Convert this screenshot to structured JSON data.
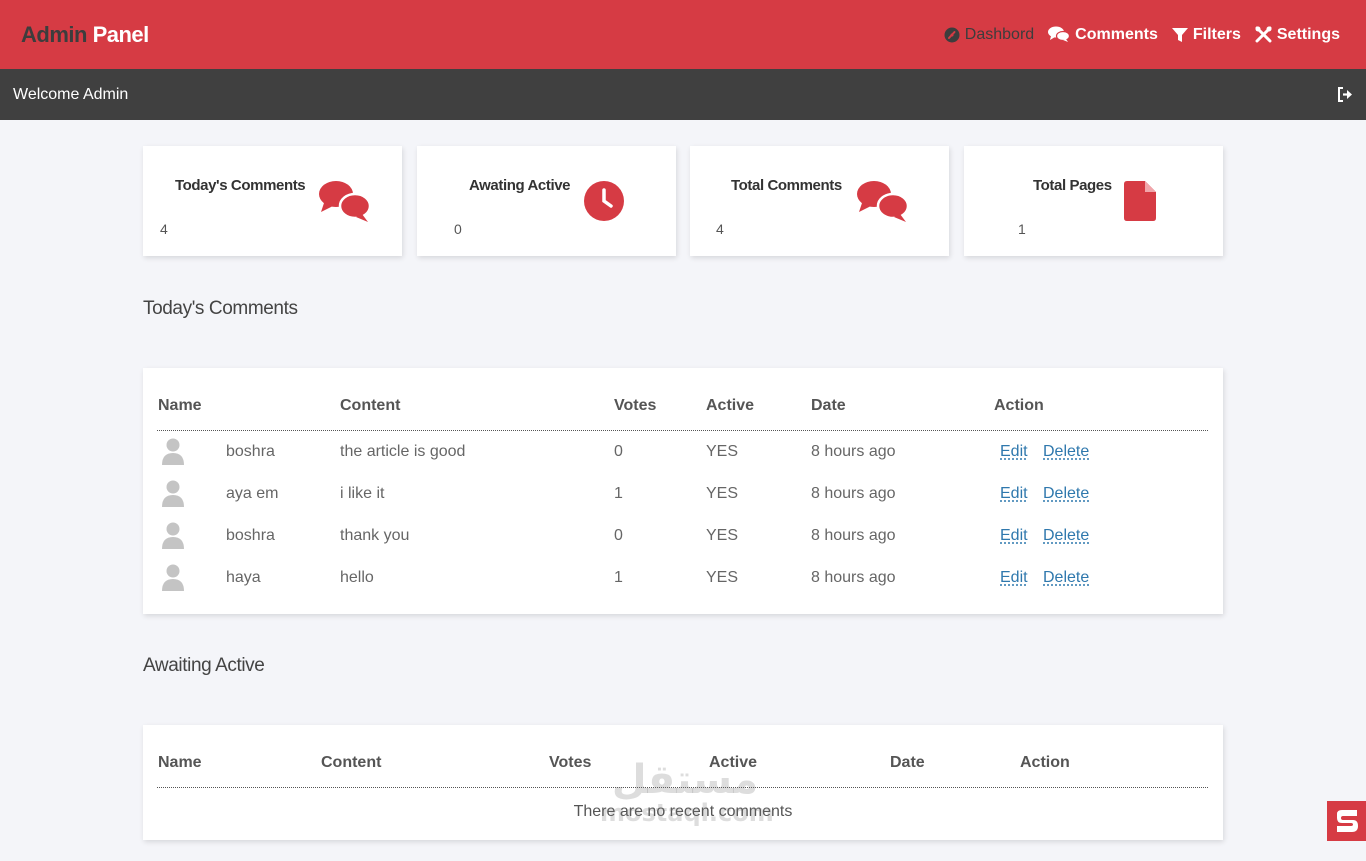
{
  "brand": {
    "part1": "Admin",
    "part2": "Panel"
  },
  "nav": [
    {
      "label": "Dashbord",
      "icon": "dashboard-icon",
      "active": true
    },
    {
      "label": "Comments",
      "icon": "comments-icon",
      "active": false
    },
    {
      "label": "Filters",
      "icon": "filter-icon",
      "active": false
    },
    {
      "label": "Settings",
      "icon": "settings-icon",
      "active": false
    }
  ],
  "welcome": {
    "text": "Welcome Admin",
    "logout_icon": "logout-icon"
  },
  "stats": [
    {
      "title": "Today's Comments",
      "value": "4",
      "icon": "comments-icon"
    },
    {
      "title": "Awating Active",
      "value": "0",
      "icon": "clock-icon"
    },
    {
      "title": "Total Comments",
      "value": "4",
      "icon": "comments-icon"
    },
    {
      "title": "Total Pages",
      "value": "1",
      "icon": "file-icon"
    }
  ],
  "today_section": {
    "title": "Today's Comments",
    "headers": [
      "Name",
      "Content",
      "Votes",
      "Active",
      "Date",
      "Action"
    ],
    "rows": [
      {
        "name": "boshra",
        "content": "the article is good",
        "votes": "0",
        "active": "YES",
        "date": "8 hours ago",
        "edit": "Edit",
        "delete": "Delete"
      },
      {
        "name": "aya em",
        "content": "i like it",
        "votes": "1",
        "active": "YES",
        "date": "8 hours ago",
        "edit": "Edit",
        "delete": "Delete"
      },
      {
        "name": "boshra",
        "content": "thank you",
        "votes": "0",
        "active": "YES",
        "date": "8 hours ago",
        "edit": "Edit",
        "delete": "Delete"
      },
      {
        "name": "haya",
        "content": "hello",
        "votes": "1",
        "active": "YES",
        "date": "8 hours ago",
        "edit": "Edit",
        "delete": "Delete"
      }
    ]
  },
  "awaiting_section": {
    "title": "Awaiting Active",
    "headers": [
      "Name",
      "Content",
      "Votes",
      "Active",
      "Date",
      "Action"
    ],
    "empty_text": "There are no recent comments"
  },
  "watermark": {
    "arabic": "مستقل",
    "latin": "mostaql.com"
  },
  "colors": {
    "accent": "#d63b44",
    "dark_bar": "#404040",
    "background": "#f4f5f9",
    "link": "#2f78ad"
  }
}
